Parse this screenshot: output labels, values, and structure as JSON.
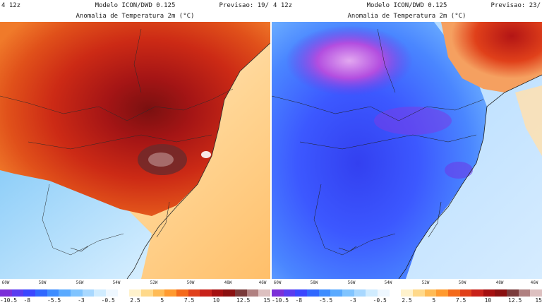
{
  "panels": [
    {
      "id": "left",
      "header_left": "4 12z",
      "model": "Modelo ICON/DWD 0.125",
      "forecast": "Previsao: 19/",
      "subtitle": "Anomalia de Temperatura 2m (°C)",
      "dominant_anomaly": "warm"
    },
    {
      "id": "right",
      "header_left": "4 12z",
      "model": "Modelo ICON/DWD 0.125",
      "forecast": "Previsao: 23/",
      "subtitle": "Anomalia de Temperatura 2m (°C)",
      "dominant_anomaly": "cold"
    }
  ],
  "longitude_labels": [
    "60W",
    "58W",
    "56W",
    "54W",
    "52W",
    "50W",
    "48W",
    "46W"
  ],
  "colorbar": {
    "tick_labels": [
      "-10.5",
      "-8",
      "-5.5",
      "-3",
      "-0.5",
      "2.5",
      "5",
      "7.5",
      "10",
      "12.5",
      "15"
    ],
    "colors": [
      "#7b2fd8",
      "#5a3cf0",
      "#3a47ff",
      "#2f68ff",
      "#3d8cff",
      "#5aaaff",
      "#80c4ff",
      "#a8d8ff",
      "#d0ecff",
      "#eef7ff",
      "#ffffff",
      "#fff2cc",
      "#ffd98a",
      "#ffbb55",
      "#ff9a2f",
      "#f46a1a",
      "#e0401a",
      "#c8221a",
      "#a51010",
      "#8a1010",
      "#7a3a3a",
      "#b08080",
      "#ddc0c0"
    ]
  },
  "colors": {
    "land_border": "#2a2a2a",
    "sea_warm": "#fff0d8",
    "sea_cool": "#bfe3ff"
  }
}
